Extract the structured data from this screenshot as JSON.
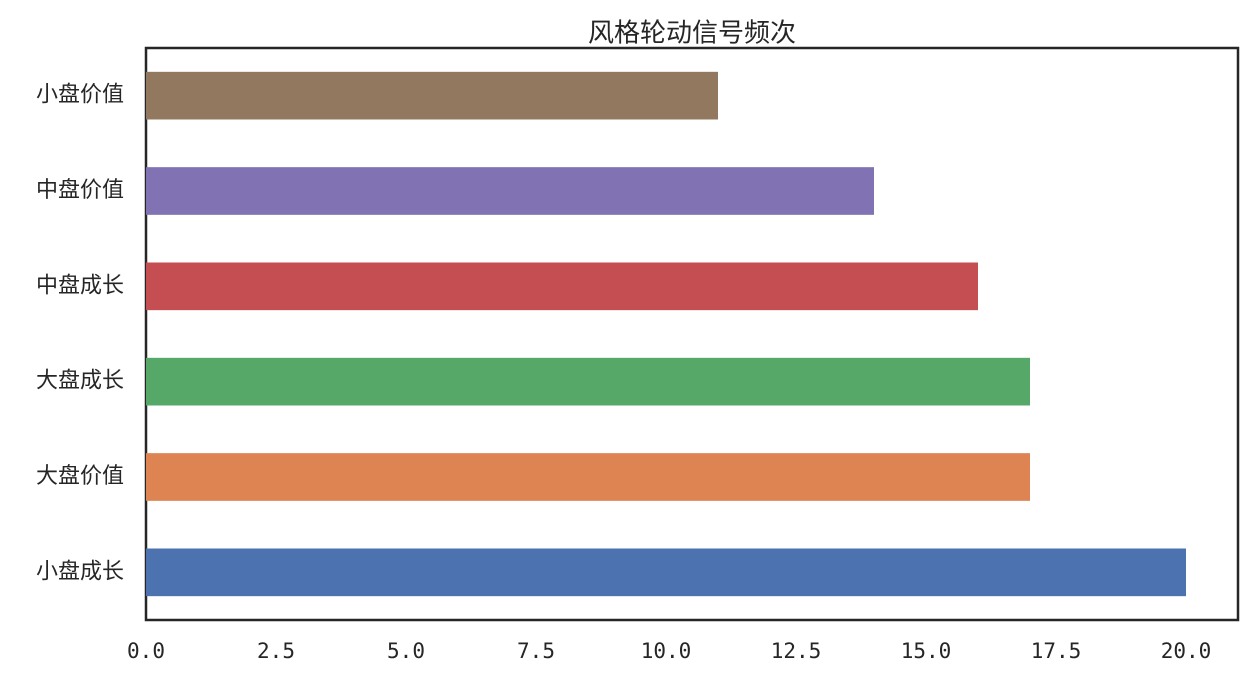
{
  "chart_data": {
    "type": "barh",
    "title": "风格轮动信号频次",
    "categories": [
      "小盘成长",
      "大盘价值",
      "大盘成长",
      "中盘成长",
      "中盘价值",
      "小盘价值"
    ],
    "values": [
      20,
      17,
      17,
      16,
      14,
      11
    ],
    "colors": [
      "#4c72b0",
      "#dd8452",
      "#55a868",
      "#c44e52",
      "#8172b3",
      "#937860"
    ],
    "xlim": [
      0,
      21
    ],
    "xticks": [
      {
        "value": 0,
        "label": "0.0"
      },
      2.5,
      {
        "value": 5,
        "label": "5.0"
      },
      7.5,
      {
        "value": 10,
        "label": "10.0"
      },
      12.5,
      {
        "value": 15,
        "label": "15.0"
      },
      17.5,
      {
        "value": 20,
        "label": "20.0"
      }
    ],
    "grid": false
  }
}
